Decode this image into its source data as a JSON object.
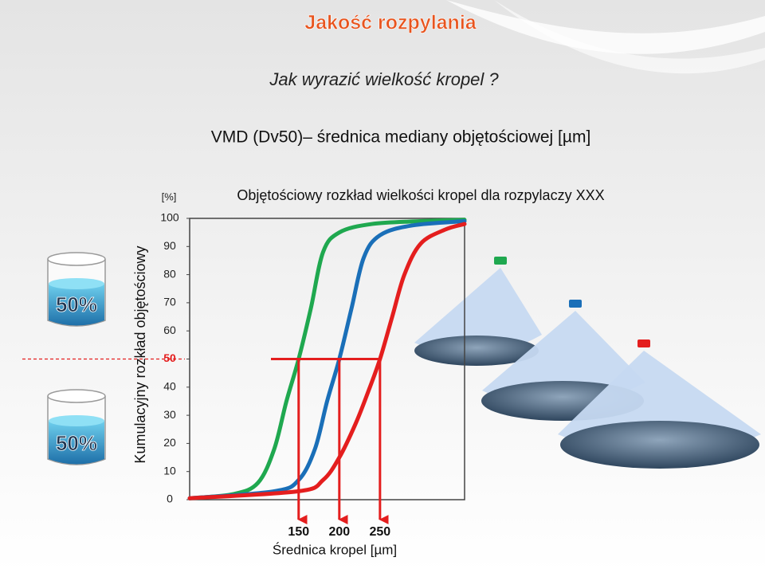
{
  "title": "Jakość rozpylania",
  "subtitle": "Jak wyrazić wielkość kropel ?",
  "definition": "VMD (Dv50)– średnica mediany objętościowej [µm]",
  "beakers": [
    {
      "label": "50%"
    },
    {
      "label": "50%"
    }
  ],
  "chart_data": {
    "type": "line",
    "title": "Objętościowy rozkład wielkości kropel dla rozpylaczy XXX",
    "ylabel": "Kumulacyjny rozkład objętościowy",
    "yunit": "[%]",
    "xlabel": "Średnica  kropel [µm]",
    "xlim": [
      16,
      354
    ],
    "ylim": [
      0,
      100
    ],
    "yticks": [
      0,
      10,
      20,
      30,
      40,
      50,
      60,
      70,
      80,
      90,
      100
    ],
    "xticks": [
      150,
      200,
      250
    ],
    "ref_line": {
      "y": 50,
      "color": "#e41e1e"
    },
    "series": [
      {
        "color": "#1fa84f",
        "x": [
          16,
          70,
          100,
          120,
          135,
          150,
          165,
          180,
          200,
          240,
          300,
          354
        ],
        "values": [
          0.5,
          2,
          6,
          18,
          35,
          50,
          68,
          88,
          95,
          98,
          99,
          99.5
        ]
      },
      {
        "color": "#1a6fb8",
        "x": [
          16,
          120,
          150,
          170,
          185,
          200,
          215,
          230,
          250,
          290,
          354
        ],
        "values": [
          0.5,
          3,
          7,
          18,
          35,
          50,
          68,
          86,
          94,
          97.5,
          99
        ]
      },
      {
        "color": "#e41e1e",
        "x": [
          16,
          150,
          180,
          200,
          220,
          235,
          250,
          265,
          280,
          300,
          330,
          354
        ],
        "values": [
          0.5,
          3,
          7,
          15,
          27,
          38,
          50,
          65,
          80,
          91,
          96,
          98
        ]
      }
    ]
  }
}
